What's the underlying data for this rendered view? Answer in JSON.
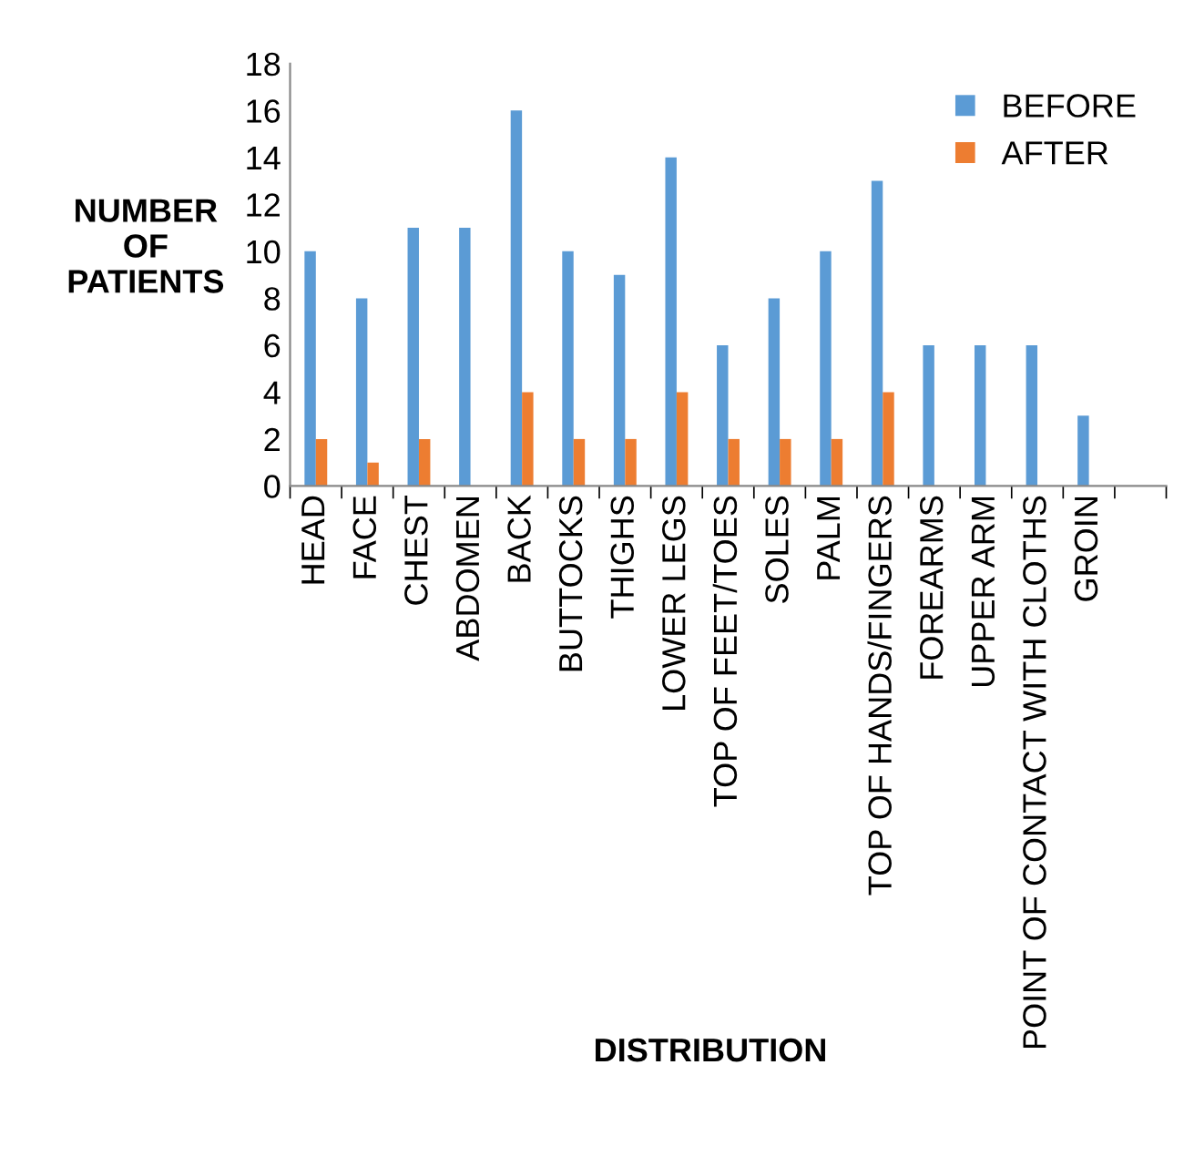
{
  "chart_data": {
    "type": "bar",
    "categories": [
      "HEAD",
      "FACE",
      "CHEST",
      "ABDOMEN",
      "BACK",
      "BUTTOCKS",
      "THIGHS",
      "LOWER LEGS",
      "TOP OF FEET/TOES",
      "SOLES",
      "PALM",
      "TOP OF HANDS/FINGERS",
      "FOREARMS",
      "UPPER ARM",
      "POINT OF CONTACT WITH CLOTHS",
      "GROIN",
      null
    ],
    "series": [
      {
        "name": "BEFORE",
        "color": "#5b9bd5",
        "values": [
          10,
          8,
          11,
          11,
          16,
          10,
          9,
          14,
          6,
          8,
          10,
          13,
          6,
          6,
          6,
          3,
          null
        ]
      },
      {
        "name": "AFTER",
        "color": "#ed7d31",
        "values": [
          2,
          1,
          2,
          null,
          4,
          2,
          2,
          4,
          2,
          2,
          2,
          4,
          null,
          null,
          null,
          null,
          null
        ]
      }
    ],
    "ylabel": "NUMBER\nOF\nPATIENTS",
    "xlabel": "DISTRIBUTION",
    "ylim": [
      0,
      18
    ],
    "yticks": [
      0,
      2,
      4,
      6,
      8,
      10,
      12,
      14,
      16,
      18
    ],
    "grid": false,
    "legend": "top right"
  }
}
